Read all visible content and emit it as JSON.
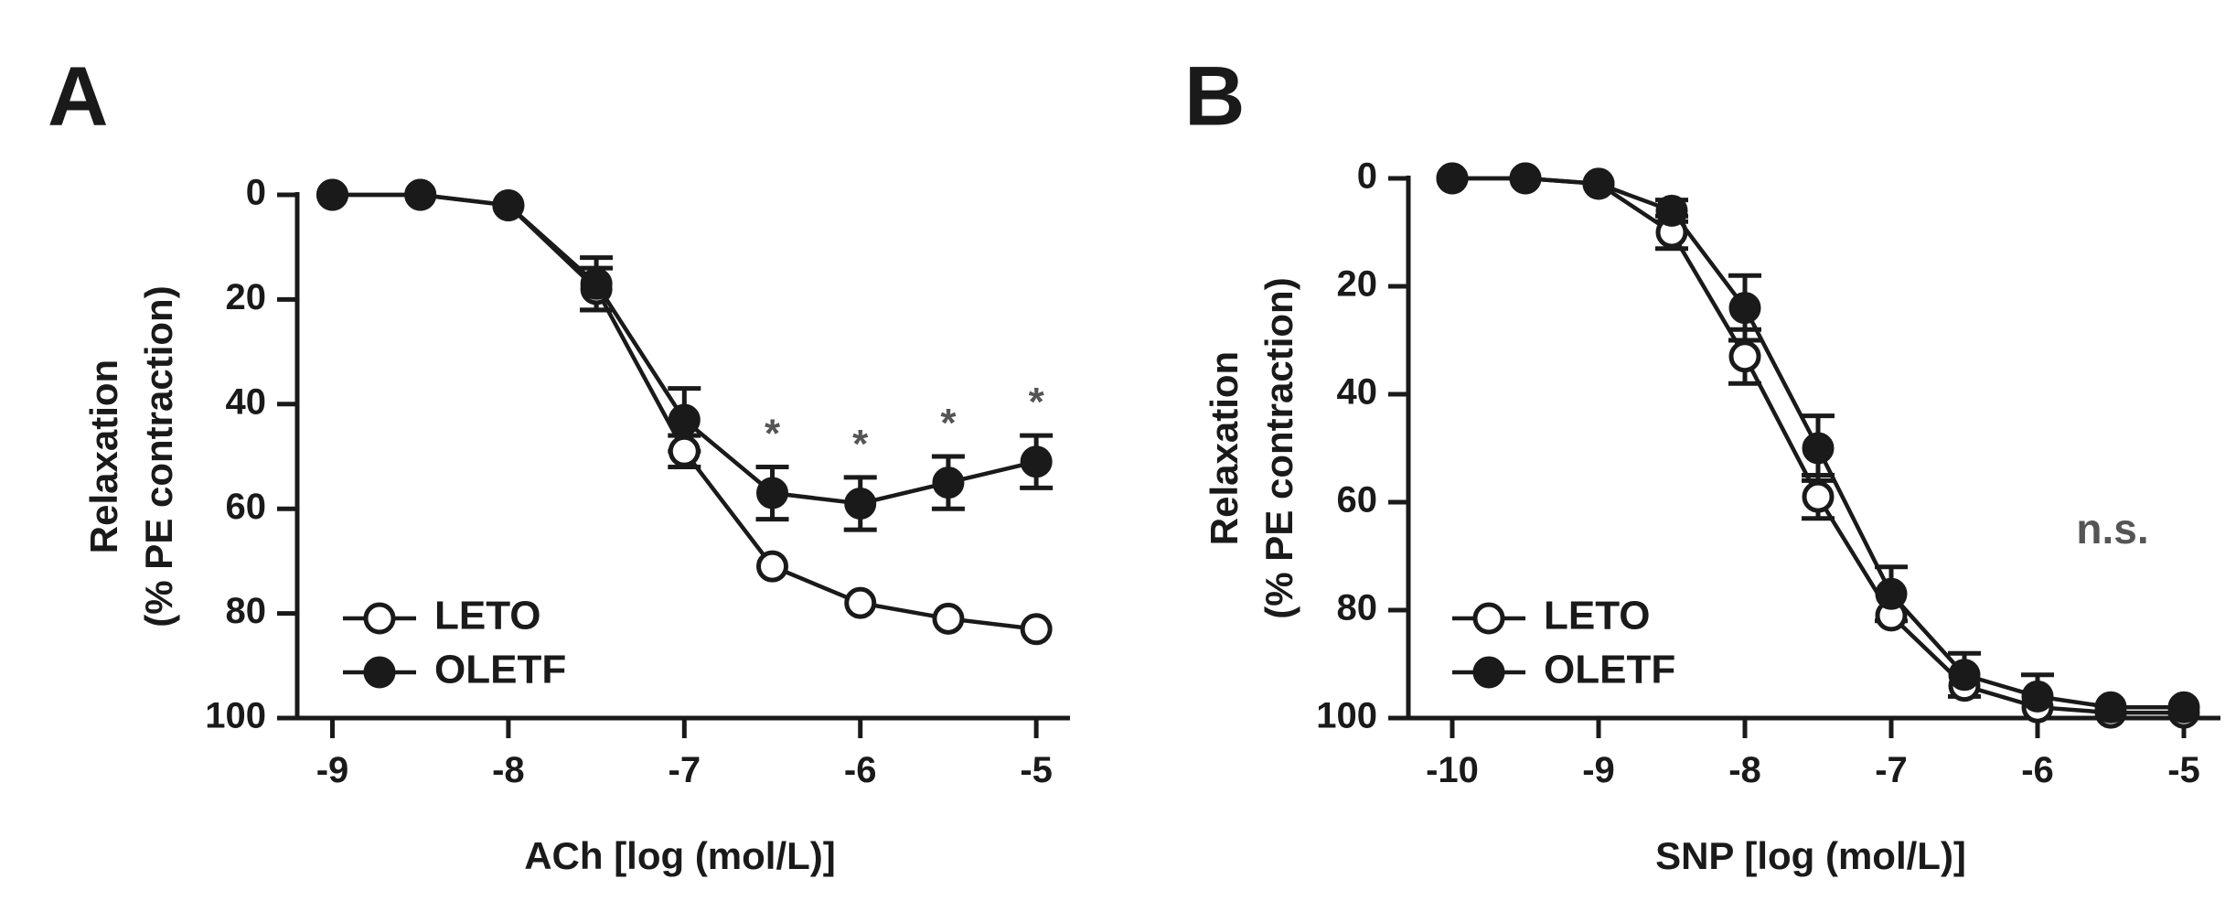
{
  "chart_data": [
    {
      "type": "line",
      "panel_label": "A",
      "xlabel": "ACh [log (mol/L)]",
      "ylabel_line1": "Relaxation",
      "ylabel_line2": "(% PE contraction)",
      "xlim": [
        -9.2,
        -4.85
      ],
      "ylim": [
        0,
        100
      ],
      "y_inverted": true,
      "xticks": [
        -9,
        -8,
        -7,
        -6,
        -5
      ],
      "yticks": [
        0,
        20,
        40,
        60,
        80,
        100
      ],
      "legend_position": "bottom-left",
      "annotation": "",
      "series": [
        {
          "name": "LETO",
          "marker": "open-circle",
          "x": [
            -9,
            -8.5,
            -8,
            -7.5,
            -7,
            -6.5,
            -6,
            -5.5,
            -5
          ],
          "y": [
            0,
            0,
            2,
            18,
            49,
            71,
            78,
            81,
            83
          ],
          "err": [
            0,
            0,
            0,
            4,
            3,
            0,
            0,
            0,
            0
          ]
        },
        {
          "name": "OLETF",
          "marker": "filled-circle",
          "x": [
            -9,
            -8.5,
            -8,
            -7.5,
            -7,
            -6.5,
            -6,
            -5.5,
            -5
          ],
          "y": [
            0,
            0,
            2,
            17,
            43,
            57,
            59,
            55,
            51
          ],
          "err": [
            0,
            0,
            0,
            5,
            6,
            5,
            5,
            5,
            5
          ],
          "significance": [
            "",
            "",
            "",
            "",
            "",
            "*",
            "*",
            "*",
            "*"
          ]
        }
      ]
    },
    {
      "type": "line",
      "panel_label": "B",
      "xlabel": "SNP [log (mol/L)]",
      "ylabel_line1": "Relaxation",
      "ylabel_line2": "(% PE contraction)",
      "xlim": [
        -10.3,
        -4.8
      ],
      "ylim": [
        0,
        100
      ],
      "y_inverted": true,
      "xticks": [
        -10,
        -9,
        -8,
        -7,
        -6,
        -5
      ],
      "yticks": [
        0,
        20,
        40,
        60,
        80,
        100
      ],
      "legend_position": "bottom-left",
      "annotation": "n.s.",
      "series": [
        {
          "name": "LETO",
          "marker": "open-circle",
          "x": [
            -10,
            -9.5,
            -9,
            -8.5,
            -8,
            -7.5,
            -7,
            -6.5,
            -6,
            -5.5,
            -5
          ],
          "y": [
            0,
            0,
            1,
            10,
            33,
            59,
            81,
            94,
            98,
            99,
            99
          ],
          "err": [
            0,
            0,
            0,
            3,
            5,
            4,
            0,
            0,
            0,
            0,
            0
          ]
        },
        {
          "name": "OLETF",
          "marker": "filled-circle",
          "x": [
            -10,
            -9.5,
            -9,
            -8.5,
            -8,
            -7.5,
            -7,
            -6.5,
            -6,
            -5.5,
            -5
          ],
          "y": [
            0,
            0,
            1,
            6,
            24,
            50,
            77,
            92,
            96,
            98,
            98
          ],
          "err": [
            0,
            0,
            0,
            2,
            6,
            6,
            5,
            4,
            4,
            0,
            0
          ]
        }
      ]
    }
  ]
}
